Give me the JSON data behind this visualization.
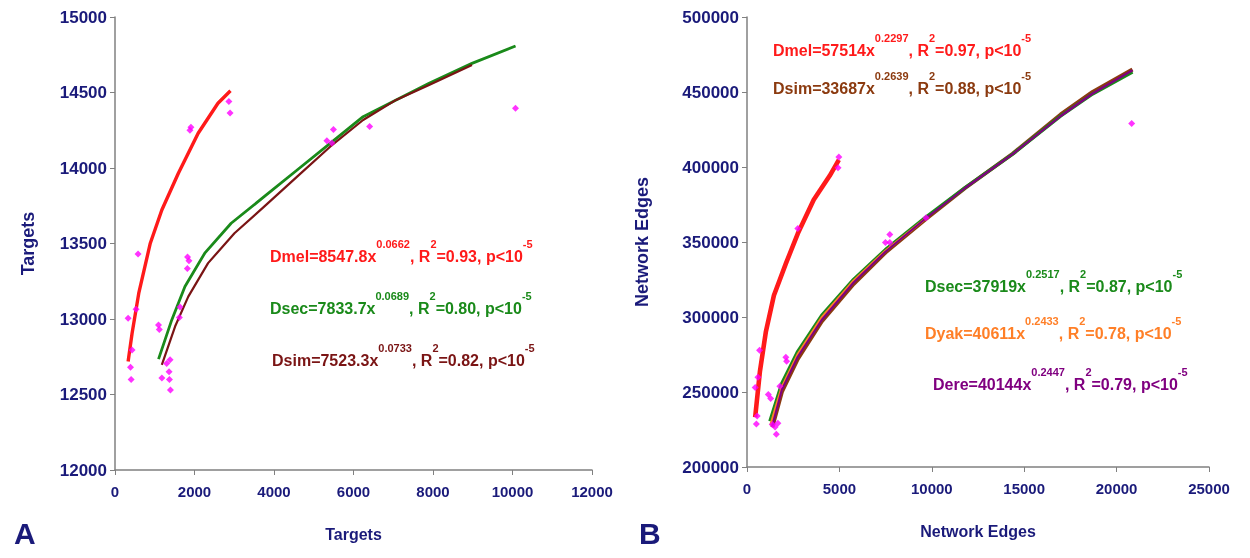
{
  "chart_data": [
    {
      "type": "scatter",
      "title": "A",
      "xlabel": "Targets",
      "ylabel": "Targets",
      "xlim": [
        0,
        12000
      ],
      "ylim": [
        12000,
        15000
      ],
      "xticks": [
        0,
        2000,
        4000,
        6000,
        8000,
        10000,
        12000
      ],
      "yticks": [
        12000,
        12500,
        13000,
        13500,
        14000,
        14500,
        15000
      ],
      "grid": false,
      "legend": false,
      "series": [
        {
          "marker": "diamond",
          "color": "#ff00ff",
          "x": [
            330,
            580,
            530,
            430,
            390,
            405,
            1095,
            1115,
            1180,
            1300,
            1385,
            1360,
            1370,
            1395,
            1635,
            1620,
            1825,
            1860,
            1820,
            1910,
            1885,
            2865,
            2895,
            5330,
            5495,
            5455,
            6405,
            10075
          ],
          "values": [
            13005,
            13430,
            13065,
            12795,
            12680,
            12600,
            12960,
            12930,
            12610,
            12705,
            12730,
            12650,
            12600,
            12530,
            13080,
            13010,
            13410,
            13385,
            13335,
            14270,
            14250,
            14440,
            14365,
            14180,
            14255,
            14165,
            14275,
            14395
          ]
        },
        {
          "type": "line",
          "name": "Dmel=8547.8x$^{0.0662}$, R$^{2}$=0.93, p<10$^{-5}$",
          "color": "#ff1a1a",
          "x": [
            330,
            430,
            598,
            888,
            1178,
            1594,
            2092,
            2590,
            2905
          ],
          "values": [
            12718,
            12906,
            13171,
            13502,
            13722,
            13965,
            14230,
            14429,
            14512
          ]
        },
        {
          "type": "line",
          "name": "Dsec=7833.7x$^{0.0689}$, R$^{2}$=0.80, p<10$^{-5}$",
          "color": "#1a8a1a",
          "x": [
            1095,
            1428,
            1760,
            2258,
            2922,
            3752,
            4582,
            5412,
            6242,
            7072,
            7902,
            8981,
            10077
          ],
          "values": [
            12734,
            12994,
            13215,
            13436,
            13634,
            13810,
            13987,
            14163,
            14340,
            14451,
            14561,
            14693,
            14808
          ]
        },
        {
          "type": "line",
          "name": "Dsim=7523.3x$^{0.0733}$, R$^{2}$=0.82, p<10$^{-5}$",
          "color": "#7a1414",
          "x": [
            1178,
            1511,
            1843,
            2341,
            3005,
            3752,
            4582,
            5412,
            6242,
            7072,
            7902,
            8981
          ],
          "values": [
            12696,
            12950,
            13148,
            13370,
            13568,
            13744,
            13943,
            14141,
            14318,
            14451,
            14550,
            14682
          ]
        }
      ]
    },
    {
      "type": "scatter",
      "title": "B",
      "xlabel": "Network Edges",
      "ylabel": "Network Edges",
      "xlim": [
        0,
        25000
      ],
      "ylim": [
        200000,
        500000
      ],
      "xticks": [
        0,
        5000,
        10000,
        15000,
        20000,
        25000
      ],
      "yticks": [
        200000,
        250000,
        300000,
        350000,
        400000,
        450000,
        500000
      ],
      "grid": false,
      "legend": false,
      "series": [
        {
          "marker": "diamond",
          "color": "#ff00ff",
          "x": [
            442,
            507,
            550,
            593,
            679,
            1153,
            1283,
            1369,
            1520,
            1585,
            1671,
            1779,
            2102,
            2145,
            2749,
            4970,
            4926,
            7492,
            7729,
            7729,
            9691,
            20816
          ],
          "values": [
            253000,
            228700,
            234000,
            259800,
            277900,
            248400,
            245700,
            228400,
            226600,
            221800,
            229200,
            253900,
            273100,
            270500,
            359000,
            406600,
            399500,
            349700,
            355000,
            349700,
            366200,
            429000
          ]
        },
        {
          "type": "line",
          "name": "Dmel=57514x$^{0.2297}$, R$^{2}$=0.97, p<10$^{-5}$",
          "color": "#ff1a1a",
          "x": [
            442,
            700,
            1024,
            1455,
            2102,
            2749,
            3611,
            4474,
            4970
          ],
          "values": [
            233200,
            263800,
            290400,
            314300,
            335600,
            355600,
            378100,
            394100,
            404700
          ]
        },
        {
          "type": "line",
          "name": "Dsim=33687x$^{0.2639}$, R$^{2}$=0.88, p<10$^{-5}$",
          "color": "#8b3a0f",
          "x": [
            1369,
            1886,
            2749,
            4043,
            5767,
            7492,
            9648,
            11804,
            14391,
            16978,
            18703,
            20859
          ],
          "values": [
            226600,
            250000,
            272000,
            297000,
            322000,
            343000,
            365000,
            386000,
            409000,
            435000,
            450000,
            465000
          ]
        },
        {
          "type": "line",
          "name": "Dsec=37919x$^{0.2517}$, R$^{2}$=0.87, p<10$^{-5}$",
          "color": "#1a8a1a",
          "x": [
            1240,
            1886,
            2749,
            4043,
            5767,
            7492,
            9648,
            11804,
            14391,
            16978,
            18703,
            20859
          ],
          "values": [
            230500,
            255800,
            277100,
            301000,
            325000,
            344900,
            366200,
            386200,
            408800,
            434100,
            448700,
            463300
          ]
        },
        {
          "type": "line",
          "name": "Dyak=40611x$^{0.2433}$, R$^{2}$=0.78, p<10$^{-5}$",
          "color": "#ff7f27",
          "x": [
            1283,
            1886,
            2749,
            4043,
            5767,
            7492,
            9648
          ],
          "values": [
            228000,
            253000,
            275000,
            299500,
            324000,
            344000,
            365500
          ]
        },
        {
          "type": "line",
          "name": "Dere=40144x$^{0.2447}$, R$^{2}$=0.79, p<10$^{-5}$",
          "color": "#800080",
          "x": [
            1369,
            1886,
            2749,
            4043,
            5767,
            7492,
            9648,
            11804,
            14391,
            16978,
            18703,
            20859
          ],
          "values": [
            227500,
            251500,
            273500,
            298000,
            323000,
            343500,
            365500,
            386000,
            408800,
            434000,
            449000,
            464500
          ]
        }
      ]
    }
  ]
}
